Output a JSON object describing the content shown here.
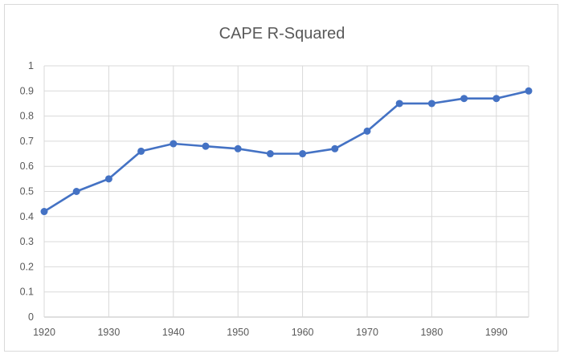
{
  "chart_data": {
    "type": "line",
    "title": "CAPE R-Squared",
    "xlabel": "",
    "ylabel": "",
    "x": [
      1920,
      1925,
      1930,
      1935,
      1940,
      1945,
      1950,
      1955,
      1960,
      1965,
      1970,
      1975,
      1980,
      1985,
      1990,
      1995
    ],
    "series": [
      {
        "values": [
          0.42,
          0.5,
          0.55,
          0.66,
          0.69,
          0.68,
          0.67,
          0.65,
          0.65,
          0.67,
          0.74,
          0.85,
          0.85,
          0.87,
          0.87,
          0.9
        ],
        "color": "#4472c4"
      }
    ],
    "xlim": [
      1920,
      1995
    ],
    "ylim": [
      0,
      1
    ],
    "x_ticks": [
      "1920",
      "1930",
      "1940",
      "1950",
      "1960",
      "1970",
      "1980",
      "1990"
    ],
    "y_ticks": [
      "0",
      "0.1",
      "0.2",
      "0.3",
      "0.4",
      "0.5",
      "0.6",
      "0.7",
      "0.8",
      "0.9",
      "1"
    ],
    "grid": true,
    "legend": "none"
  }
}
